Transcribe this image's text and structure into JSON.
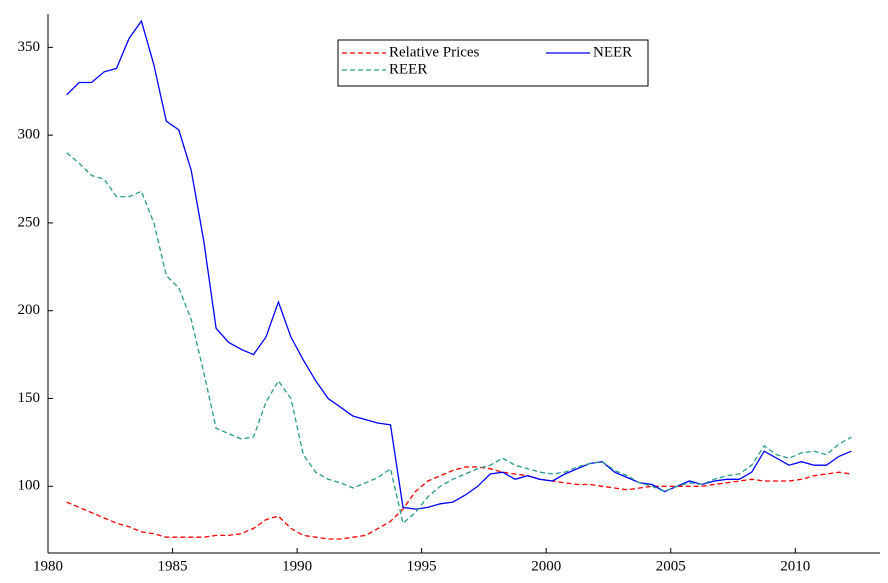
{
  "chart_data": {
    "type": "line",
    "x": [
      1980.75,
      1981.25,
      1981.75,
      1982.25,
      1982.75,
      1983.25,
      1983.75,
      1984.25,
      1984.75,
      1985.25,
      1985.75,
      1986.25,
      1986.75,
      1987.25,
      1987.75,
      1988.25,
      1988.75,
      1989.25,
      1989.75,
      1990.25,
      1990.75,
      1991.25,
      1991.75,
      1992.25,
      1992.75,
      1993.25,
      1993.75,
      1994.25,
      1994.75,
      1995.25,
      1995.75,
      1996.25,
      1996.75,
      1997.25,
      1997.75,
      1998.25,
      1998.75,
      1999.25,
      1999.75,
      2000.25,
      2000.75,
      2001.25,
      2001.75,
      2002.25,
      2002.75,
      2003.25,
      2003.75,
      2004.25,
      2004.75,
      2005.25,
      2005.75,
      2006.25,
      2006.75,
      2007.25,
      2007.75,
      2008.25,
      2008.75,
      2009.25,
      2009.75,
      2010.25,
      2010.75,
      2011.25,
      2011.75,
      2012.25
    ],
    "series": [
      {
        "name": "Relative Prices",
        "color": "#ff0000",
        "dash": true,
        "values": [
          91,
          88,
          85,
          82,
          79,
          77,
          74,
          73,
          71,
          71,
          71,
          71,
          72,
          72,
          73,
          76,
          81,
          83,
          76,
          72,
          71,
          70,
          70,
          71,
          72,
          76,
          80,
          87,
          97,
          103,
          106,
          109,
          111,
          111,
          110,
          108,
          107,
          106,
          104,
          103,
          102,
          101,
          101,
          100,
          99,
          98,
          99,
          100,
          100,
          100,
          100,
          100,
          101,
          102,
          103,
          104,
          103,
          103,
          103,
          104,
          106,
          107,
          108,
          107
        ]
      },
      {
        "name": "NEER",
        "color": "#0000ff",
        "dash": false,
        "values": [
          323,
          330,
          330,
          336,
          338,
          355,
          365,
          340,
          308,
          303,
          280,
          240,
          190,
          182,
          178,
          175,
          185,
          205,
          185,
          172,
          160,
          150,
          145,
          140,
          138,
          136,
          135,
          88,
          87,
          88,
          90,
          91,
          95,
          100,
          107,
          108,
          104,
          106,
          104,
          103,
          107,
          110,
          113,
          114,
          108,
          105,
          102,
          101,
          97,
          100,
          103,
          101,
          103,
          104,
          104,
          108,
          120,
          116,
          112,
          114,
          112,
          112,
          117,
          120
        ]
      },
      {
        "name": "REER",
        "color": "#2a9a8e",
        "dash": true,
        "values": [
          290,
          284,
          277,
          275,
          265,
          265,
          268,
          250,
          220,
          213,
          195,
          165,
          133,
          130,
          127,
          128,
          148,
          160,
          150,
          118,
          108,
          104,
          102,
          99,
          102,
          105,
          110,
          79,
          85,
          94,
          100,
          104,
          107,
          110,
          112,
          116,
          112,
          110,
          108,
          107,
          108,
          111,
          113,
          114,
          109,
          106,
          102,
          100,
          97,
          100,
          102,
          101,
          104,
          106,
          107,
          112,
          123,
          118,
          116,
          119,
          120,
          118,
          124,
          128
        ]
      }
    ],
    "xlim": [
      1980,
      2013.4
    ],
    "ylim": [
      62,
      369
    ],
    "xticks": [
      1980,
      1985,
      1990,
      1995,
      2000,
      2005,
      2010
    ],
    "yticks": [
      100,
      150,
      200,
      250,
      300,
      350
    ]
  }
}
